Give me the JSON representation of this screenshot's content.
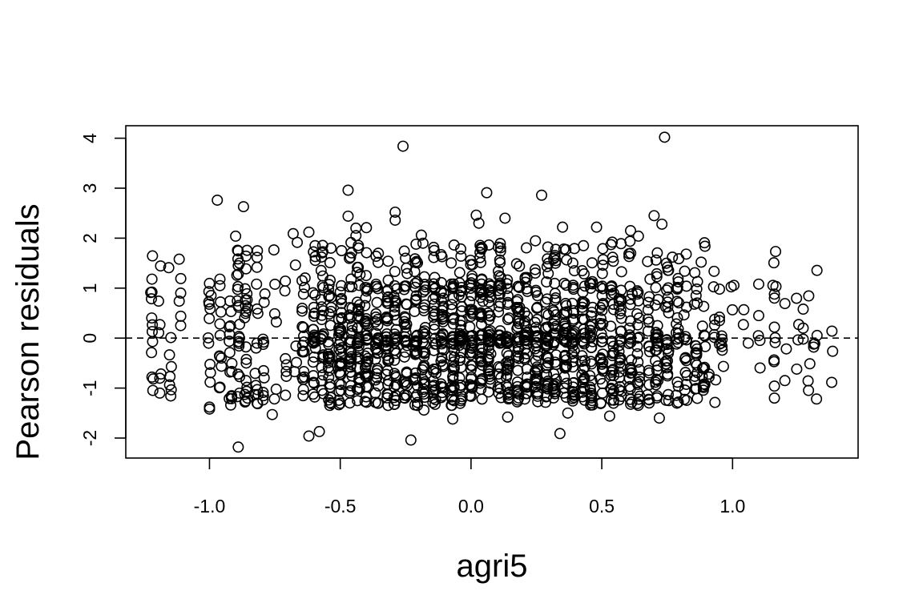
{
  "chart_data": {
    "type": "scatter",
    "title": "",
    "xlabel": "agri5",
    "ylabel": "Pearson residuals",
    "xlim": [
      -1.32,
      1.48
    ],
    "ylim": [
      -2.4,
      4.25
    ],
    "x_ticks": [
      -1.0,
      -0.5,
      0.0,
      0.5,
      1.0
    ],
    "x_tick_labels": [
      "-1.0",
      "-0.5",
      "0.0",
      "0.5",
      "1.0"
    ],
    "y_ticks": [
      -2,
      -1,
      0,
      1,
      2,
      3,
      4
    ],
    "y_tick_labels": [
      "-2",
      "-1",
      "0",
      "1",
      "2",
      "3",
      "4"
    ],
    "reference_line": {
      "y": 0,
      "style": "dashed"
    },
    "grid": false,
    "point_style": "open-circle",
    "colors": {
      "points": "#000000",
      "axes": "#000000",
      "background": "#ffffff"
    },
    "x_levels": [
      -1.22,
      -1.19,
      -1.15,
      -1.11,
      -1.0,
      -0.96,
      -0.92,
      -0.89,
      -0.86,
      -0.82,
      -0.79,
      -0.75,
      -0.71,
      -0.67,
      -0.64,
      -0.6,
      -0.57,
      -0.54,
      -0.5,
      -0.46,
      -0.43,
      -0.4,
      -0.36,
      -0.32,
      -0.29,
      -0.25,
      -0.21,
      -0.18,
      -0.14,
      -0.11,
      -0.07,
      -0.04,
      0.0,
      0.04,
      0.07,
      0.11,
      0.14,
      0.18,
      0.21,
      0.25,
      0.29,
      0.32,
      0.36,
      0.39,
      0.43,
      0.46,
      0.5,
      0.54,
      0.57,
      0.61,
      0.64,
      0.68,
      0.71,
      0.75,
      0.79,
      0.82,
      0.86,
      0.89,
      0.93,
      0.96,
      1.0,
      1.04,
      1.1,
      1.16,
      1.2,
      1.25,
      1.29,
      1.32,
      1.38
    ],
    "level_counts": [
      10,
      6,
      8,
      5,
      12,
      10,
      15,
      20,
      22,
      14,
      10,
      6,
      6,
      5,
      20,
      28,
      26,
      30,
      38,
      35,
      36,
      38,
      37,
      35,
      34,
      36,
      38,
      34,
      36,
      38,
      40,
      42,
      44,
      42,
      40,
      38,
      36,
      38,
      37,
      40,
      40,
      38,
      37,
      36,
      36,
      34,
      34,
      32,
      30,
      28,
      22,
      18,
      30,
      28,
      22,
      18,
      20,
      16,
      8,
      6,
      3,
      2,
      3,
      8,
      2,
      4,
      4,
      4,
      2
    ],
    "special_points": [
      {
        "x": 0.74,
        "y": 4.02
      },
      {
        "x": -0.26,
        "y": 3.84
      },
      {
        "x": -0.47,
        "y": 2.96
      },
      {
        "x": 0.06,
        "y": 2.91
      },
      {
        "x": 0.27,
        "y": 2.86
      },
      {
        "x": -0.97,
        "y": 2.76
      },
      {
        "x": -0.87,
        "y": 2.63
      },
      {
        "x": -0.29,
        "y": 2.52
      },
      {
        "x": 0.02,
        "y": 2.46
      },
      {
        "x": 0.7,
        "y": 2.45
      },
      {
        "x": -0.47,
        "y": 2.44
      },
      {
        "x": 0.13,
        "y": 2.4
      },
      {
        "x": -0.29,
        "y": 2.36
      },
      {
        "x": 0.73,
        "y": 2.28
      },
      {
        "x": 0.03,
        "y": 2.3
      },
      {
        "x": 0.48,
        "y": 2.22
      },
      {
        "x": -0.44,
        "y": 2.2
      },
      {
        "x": 0.35,
        "y": 2.22
      },
      {
        "x": -0.4,
        "y": 2.21
      },
      {
        "x": -0.68,
        "y": 2.09
      },
      {
        "x": -0.9,
        "y": 2.04
      },
      {
        "x": -0.62,
        "y": 2.12
      },
      {
        "x": -0.19,
        "y": 2.06
      },
      {
        "x": -0.44,
        "y": 2.05
      },
      {
        "x": -0.89,
        "y": -2.18
      },
      {
        "x": -0.23,
        "y": -2.04
      },
      {
        "x": -0.62,
        "y": -1.96
      },
      {
        "x": -0.58,
        "y": -1.87
      },
      {
        "x": 0.34,
        "y": -1.91
      },
      {
        "x": -1.0,
        "y": -1.42
      },
      {
        "x": -1.0,
        "y": -1.38
      },
      {
        "x": -0.76,
        "y": -1.53
      },
      {
        "x": 1.16,
        "y": -1.2
      },
      {
        "x": 1.16,
        "y": -0.96
      },
      {
        "x": 1.2,
        "y": -0.85
      },
      {
        "x": 1.38,
        "y": 0.14
      },
      {
        "x": 1.31,
        "y": -0.12
      },
      {
        "x": 1.31,
        "y": -0.18
      },
      {
        "x": 1.27,
        "y": 0.58
      },
      {
        "x": 1.27,
        "y": 0.2
      },
      {
        "x": 1.27,
        "y": -0.02
      },
      {
        "x": 1.16,
        "y": 0.88
      },
      {
        "x": 1.16,
        "y": 0.8
      },
      {
        "x": 1.16,
        "y": 0.22
      },
      {
        "x": 1.1,
        "y": 1.08
      },
      {
        "x": 1.1,
        "y": 0.45
      },
      {
        "x": 1.06,
        "y": -0.1
      },
      {
        "x": 0.95,
        "y": 0.98
      },
      {
        "x": 0.95,
        "y": 0.42
      },
      {
        "x": 0.95,
        "y": 0.35
      },
      {
        "x": 0.95,
        "y": -0.12
      },
      {
        "x": 0.91,
        "y": -0.78
      },
      {
        "x": 0.91,
        "y": -0.72
      },
      {
        "x": -1.22,
        "y": 1.18
      },
      {
        "x": -1.22,
        "y": 0.92
      },
      {
        "x": -1.22,
        "y": -0.78
      },
      {
        "x": -1.19,
        "y": -1.1
      },
      {
        "x": -1.11,
        "y": 0.9
      },
      {
        "x": -0.96,
        "y": 1.05
      },
      {
        "x": -0.96,
        "y": 1.18
      },
      {
        "x": -0.89,
        "y": 1.45
      },
      {
        "x": -0.89,
        "y": 1.28
      },
      {
        "x": -0.82,
        "y": 1.08
      },
      {
        "x": -0.71,
        "y": 1.14
      },
      {
        "x": 0.88,
        "y": 1.52
      },
      {
        "x": 0.77,
        "y": 1.62
      },
      {
        "x": 0.64,
        "y": 2.04
      },
      {
        "x": 0.61,
        "y": 2.15
      },
      {
        "x": 0.43,
        "y": 1.85
      },
      {
        "x": 0.54,
        "y": 1.92
      },
      {
        "x": -0.18,
        "y": -1.44
      },
      {
        "x": 0.14,
        "y": -1.58
      },
      {
        "x": -0.07,
        "y": -1.62
      },
      {
        "x": 0.72,
        "y": -1.6
      },
      {
        "x": 0.53,
        "y": -1.56
      },
      {
        "x": 0.37,
        "y": -1.5
      }
    ]
  }
}
